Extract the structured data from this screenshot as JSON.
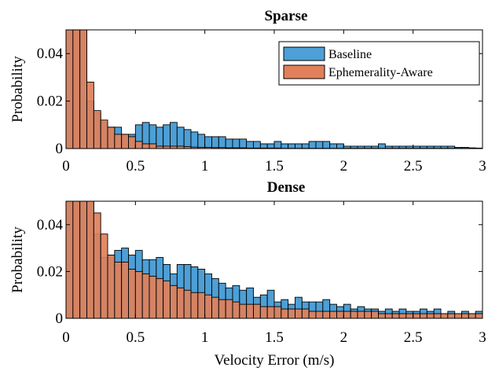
{
  "chart_data": [
    {
      "type": "histogram",
      "title": "Sparse",
      "xlabel": "",
      "ylabel": "Probability",
      "xlim": [
        0,
        3
      ],
      "ylim": [
        0,
        0.05
      ],
      "xticks": [
        "0",
        "0.5",
        "1",
        "1.5",
        "2",
        "2.5",
        "3"
      ],
      "yticks": [
        "0",
        "0.02",
        "0.04"
      ],
      "bin_width": 0.05,
      "bin_start": 0,
      "legend": {
        "placement": "top-right",
        "entries": [
          "Baseline",
          "Ephemerality-Aware"
        ]
      },
      "series": [
        {
          "name": "Baseline",
          "color": "#4d9fd6",
          "values": [
            0.05,
            0.05,
            0.05,
            0.02,
            0.015,
            0.011,
            0.009,
            0.009,
            0.006,
            0.006,
            0.01,
            0.011,
            0.01,
            0.009,
            0.01,
            0.011,
            0.009,
            0.008,
            0.007,
            0.006,
            0.005,
            0.005,
            0.005,
            0.004,
            0.004,
            0.004,
            0.003,
            0.003,
            0.002,
            0.002,
            0.003,
            0.002,
            0.002,
            0.002,
            0.002,
            0.003,
            0.003,
            0.003,
            0.002,
            0.002,
            0.001,
            0.001,
            0.001,
            0.001,
            0.001,
            0.002,
            0.001,
            0.001,
            0.001,
            0.001,
            0.001,
            0.001,
            0.001,
            0.001,
            0.001,
            0.001,
            0.0005,
            0.0005,
            0.0003,
            0.0002
          ]
        },
        {
          "name": "Ephemerality-Aware",
          "color": "#e0805a",
          "values": [
            0.05,
            0.05,
            0.05,
            0.028,
            0.016,
            0.012,
            0.009,
            0.006,
            0.006,
            0.005,
            0.003,
            0.002,
            0.002,
            0.001,
            0.001,
            0.001,
            0.001,
            0.0008,
            0.0006,
            0.0005,
            0.0005,
            0.0004,
            0.0004,
            0.0003,
            0.0003,
            0.0003,
            0.0002,
            0.0002,
            0.0002,
            0.0002,
            0.0002,
            0.0001,
            0.0001,
            0.0001,
            0.0001,
            0.0001,
            0.0001,
            0.0001,
            0.0001,
            0.0001,
            0.0001,
            0.0001,
            0.0001,
            0.0001,
            0.0001,
            0.0001,
            0.0001,
            0.0001,
            0.0001,
            0.0001,
            0.0001,
            0.0001,
            0.0001,
            0.0001,
            0.0001,
            0.0001,
            0.0001,
            0.0001,
            0.0001,
            0.0001
          ]
        }
      ]
    },
    {
      "type": "histogram",
      "title": "Dense",
      "xlabel": "Velocity Error (m/s)",
      "ylabel": "Probability",
      "xlim": [
        0,
        3
      ],
      "ylim": [
        0,
        0.05
      ],
      "xticks": [
        "0",
        "0.5",
        "1",
        "1.5",
        "2",
        "2.5",
        "3"
      ],
      "yticks": [
        "0",
        "0.02",
        "0.04"
      ],
      "bin_width": 0.05,
      "bin_start": 0,
      "series": [
        {
          "name": "Baseline",
          "color": "#4d9fd6",
          "values": [
            0.05,
            0.05,
            0.05,
            0.05,
            0.036,
            0.026,
            0.027,
            0.029,
            0.03,
            0.027,
            0.029,
            0.025,
            0.025,
            0.026,
            0.023,
            0.019,
            0.023,
            0.023,
            0.022,
            0.021,
            0.019,
            0.017,
            0.015,
            0.013,
            0.014,
            0.012,
            0.013,
            0.009,
            0.01,
            0.012,
            0.007,
            0.008,
            0.006,
            0.009,
            0.007,
            0.007,
            0.007,
            0.008,
            0.006,
            0.005,
            0.006,
            0.004,
            0.005,
            0.004,
            0.004,
            0.003,
            0.004,
            0.003,
            0.004,
            0.003,
            0.003,
            0.004,
            0.003,
            0.004,
            0.002,
            0.003,
            0.002,
            0.003,
            0.002,
            0.003
          ]
        },
        {
          "name": "Ephemerality-Aware",
          "color": "#e0805a",
          "values": [
            0.05,
            0.05,
            0.05,
            0.05,
            0.045,
            0.036,
            0.027,
            0.024,
            0.024,
            0.021,
            0.02,
            0.019,
            0.018,
            0.017,
            0.016,
            0.014,
            0.013,
            0.012,
            0.011,
            0.011,
            0.01,
            0.009,
            0.008,
            0.008,
            0.007,
            0.006,
            0.006,
            0.006,
            0.005,
            0.005,
            0.005,
            0.004,
            0.004,
            0.004,
            0.004,
            0.003,
            0.003,
            0.003,
            0.003,
            0.003,
            0.003,
            0.003,
            0.003,
            0.003,
            0.003,
            0.002,
            0.002,
            0.002,
            0.002,
            0.002,
            0.002,
            0.002,
            0.002,
            0.002,
            0.002,
            0.002,
            0.002,
            0.002,
            0.002,
            0.002
          ]
        }
      ]
    }
  ]
}
